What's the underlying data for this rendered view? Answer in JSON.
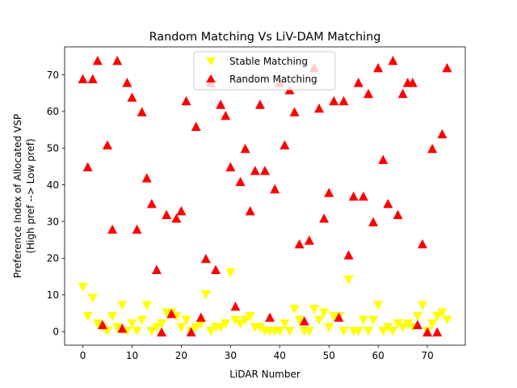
{
  "chart_data": {
    "type": "scatter",
    "title": "Random Matching Vs LiV-DAM Matching",
    "xlabel": "LiDAR Number",
    "ylabel_lines": [
      "Preference Index of Allocated VSP",
      "(High pref --> Low pref)"
    ],
    "xlim": [
      -3.7,
      77.7
    ],
    "ylim": [
      -3.7,
      77.6
    ],
    "x_ticks": [
      0,
      10,
      20,
      30,
      40,
      50,
      60,
      70
    ],
    "y_ticks": [
      0,
      10,
      20,
      30,
      40,
      50,
      60,
      70
    ],
    "grid": false,
    "legend_position": "upper center",
    "series": [
      {
        "name": "Stable Matching",
        "marker": "triangle-down",
        "color": "#ffff00",
        "x": [
          0,
          1,
          2,
          3,
          4,
          5,
          6,
          7,
          8,
          9,
          10,
          11,
          12,
          13,
          14,
          15,
          16,
          17,
          18,
          19,
          20,
          21,
          22,
          23,
          24,
          25,
          26,
          27,
          28,
          29,
          30,
          31,
          32,
          33,
          34,
          35,
          36,
          37,
          38,
          39,
          40,
          41,
          42,
          43,
          44,
          45,
          46,
          47,
          48,
          49,
          50,
          51,
          52,
          53,
          54,
          55,
          56,
          57,
          58,
          59,
          60,
          61,
          62,
          63,
          64,
          65,
          66,
          67,
          68,
          69,
          70,
          71,
          72,
          73,
          74
        ],
        "y": [
          12,
          4,
          9,
          2,
          1,
          0,
          4,
          1,
          7,
          0,
          2,
          0,
          3,
          7,
          0,
          1,
          2,
          5,
          5,
          4,
          1,
          3,
          0,
          1,
          2,
          10,
          0,
          1,
          1,
          2,
          16,
          3,
          2,
          3,
          4,
          1,
          1,
          0,
          0,
          0,
          0,
          2,
          0,
          6,
          3,
          0,
          0,
          6,
          3,
          5,
          1,
          4,
          4,
          0,
          14,
          0,
          0,
          3,
          0,
          3,
          7,
          0,
          1,
          0,
          2,
          1,
          2,
          1,
          4,
          7,
          0,
          2,
          4,
          5,
          3
        ]
      },
      {
        "name": "Random Matching",
        "marker": "triangle-up",
        "color": "#ff0000",
        "x": [
          0,
          1,
          2,
          3,
          4,
          5,
          6,
          7,
          8,
          9,
          10,
          11,
          12,
          13,
          14,
          15,
          16,
          17,
          18,
          19,
          20,
          21,
          22,
          23,
          24,
          25,
          26,
          27,
          28,
          29,
          30,
          31,
          32,
          33,
          34,
          35,
          36,
          37,
          38,
          39,
          40,
          41,
          42,
          43,
          44,
          45,
          46,
          47,
          48,
          49,
          50,
          51,
          52,
          53,
          54,
          55,
          56,
          57,
          58,
          59,
          60,
          61,
          62,
          63,
          64,
          65,
          66,
          67,
          68,
          69,
          70,
          71,
          72,
          73,
          74
        ],
        "y": [
          69,
          45,
          69,
          74,
          2,
          51,
          28,
          74,
          1,
          68,
          64,
          28,
          60,
          42,
          35,
          17,
          0,
          32,
          5,
          31,
          33,
          63,
          0,
          56,
          4,
          20,
          68,
          17,
          62,
          59,
          45,
          7,
          41,
          50,
          33,
          44,
          62,
          44,
          4,
          39,
          68,
          51,
          66,
          60,
          24,
          3,
          25,
          72,
          61,
          31,
          38,
          63,
          4,
          63,
          21,
          37,
          68,
          37,
          65,
          30,
          72,
          47,
          35,
          74,
          32,
          65,
          68,
          68,
          2,
          24,
          0,
          50,
          0,
          54,
          72
        ]
      }
    ]
  }
}
